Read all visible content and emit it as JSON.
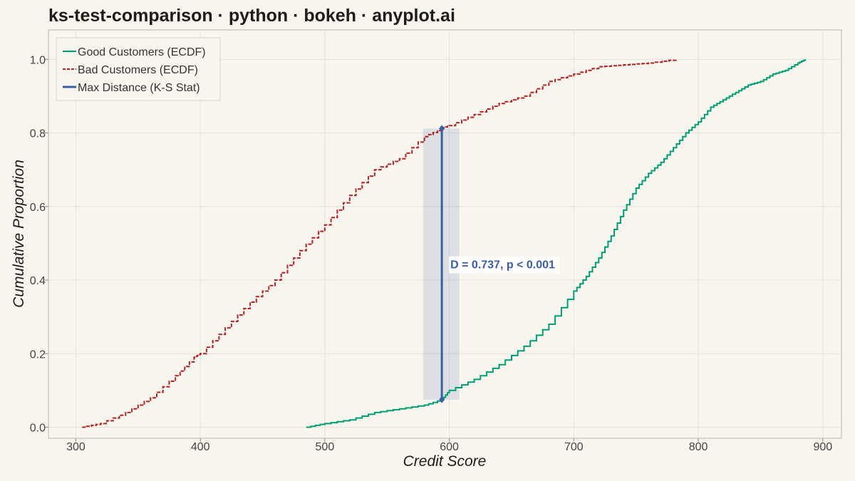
{
  "title": "ks-test-comparison · python · bokeh · anyplot.ai",
  "chart_data": {
    "type": "line",
    "xlabel": "Credit Score",
    "ylabel": "Cumulative Proportion",
    "xlim": [
      278,
      915
    ],
    "ylim": [
      -0.03,
      1.08
    ],
    "x_ticks": [
      300,
      400,
      500,
      600,
      700,
      800,
      900
    ],
    "y_ticks": [
      0.0,
      0.2,
      0.4,
      0.6,
      0.8,
      1.0
    ],
    "x_tick_labels": [
      "300",
      "400",
      "500",
      "600",
      "700",
      "800",
      "900"
    ],
    "y_tick_labels": [
      "0.0",
      "0.2",
      "0.4",
      "0.6",
      "0.8",
      "1.0"
    ],
    "grid": true,
    "legend_position": "top-left",
    "series": [
      {
        "name": "Good Customers (ECDF)",
        "color": "#009e73",
        "dash": "solid",
        "x": [
          485,
          500,
          520,
          540,
          560,
          580,
          594,
          600,
          620,
          640,
          660,
          680,
          700,
          710,
          720,
          730,
          740,
          750,
          760,
          770,
          780,
          790,
          800,
          810,
          820,
          830,
          840,
          850,
          860,
          870,
          880,
          886
        ],
        "y": [
          0.0,
          0.01,
          0.02,
          0.04,
          0.05,
          0.06,
          0.075,
          0.1,
          0.13,
          0.17,
          0.22,
          0.28,
          0.37,
          0.41,
          0.46,
          0.52,
          0.59,
          0.65,
          0.69,
          0.72,
          0.76,
          0.8,
          0.83,
          0.87,
          0.89,
          0.91,
          0.93,
          0.94,
          0.96,
          0.97,
          0.99,
          1.0
        ]
      },
      {
        "name": "Bad Customers (ECDF)",
        "color": "#b22222",
        "dash": "dashed",
        "x": [
          305,
          320,
          340,
          360,
          380,
          395,
          400,
          420,
          440,
          460,
          480,
          500,
          520,
          540,
          560,
          580,
          594,
          600,
          620,
          640,
          660,
          680,
          700,
          720,
          740,
          760,
          782
        ],
        "y": [
          0.0,
          0.01,
          0.04,
          0.08,
          0.14,
          0.19,
          0.2,
          0.27,
          0.34,
          0.4,
          0.48,
          0.55,
          0.63,
          0.7,
          0.73,
          0.79,
          0.812,
          0.82,
          0.85,
          0.88,
          0.9,
          0.94,
          0.96,
          0.98,
          0.985,
          0.99,
          1.0
        ]
      }
    ],
    "ks_statistic": {
      "name": "Max Distance (K-S Stat)",
      "color": "#3a5ea0",
      "x": 594,
      "y_low": 0.075,
      "y_high": 0.812,
      "band_x": [
        579,
        608
      ],
      "annotation": "D = 0.737,  p < 0.001"
    }
  }
}
